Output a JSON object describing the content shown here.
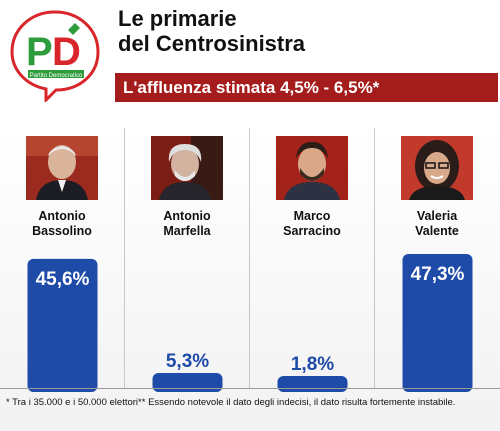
{
  "header": {
    "title_line1": "Le primarie",
    "title_line2": "del Centrosinistra",
    "banner": "L'affluenza stimata 4,5% - 6,5%*",
    "logo_text": "PD",
    "logo_caption": "Partito Democratico"
  },
  "colors": {
    "bar": "#1e4aa8",
    "banner": "#a51c1c",
    "logo_green": "#2e9c3a",
    "logo_red": "#d8262b"
  },
  "candidates": [
    {
      "first": "Antonio",
      "last": "Bassolino",
      "value_label": "45,6%"
    },
    {
      "first": "Antonio",
      "last": "Marfella",
      "value_label": "5,3%"
    },
    {
      "first": "Marco",
      "last": "Sarracino",
      "value_label": "1,8%"
    },
    {
      "first": "Valeria",
      "last": "Valente",
      "value_label": "47,3%"
    }
  ],
  "chart_data": {
    "type": "bar",
    "title": "Le primarie del Centrosinistra",
    "categories": [
      "Antonio Bassolino",
      "Antonio Marfella",
      "Marco Sarracino",
      "Valeria Valente"
    ],
    "values": [
      45.6,
      5.3,
      1.8,
      47.3
    ],
    "value_labels": [
      "45,6%",
      "5,3%",
      "1,8%",
      "47,3%"
    ],
    "ylim": [
      0,
      50
    ]
  },
  "footnote": "* Tra i 35.000 e i 50.000 elettori** Essendo notevole il dato degli indecisi, il dato risulta fortemente instabile."
}
